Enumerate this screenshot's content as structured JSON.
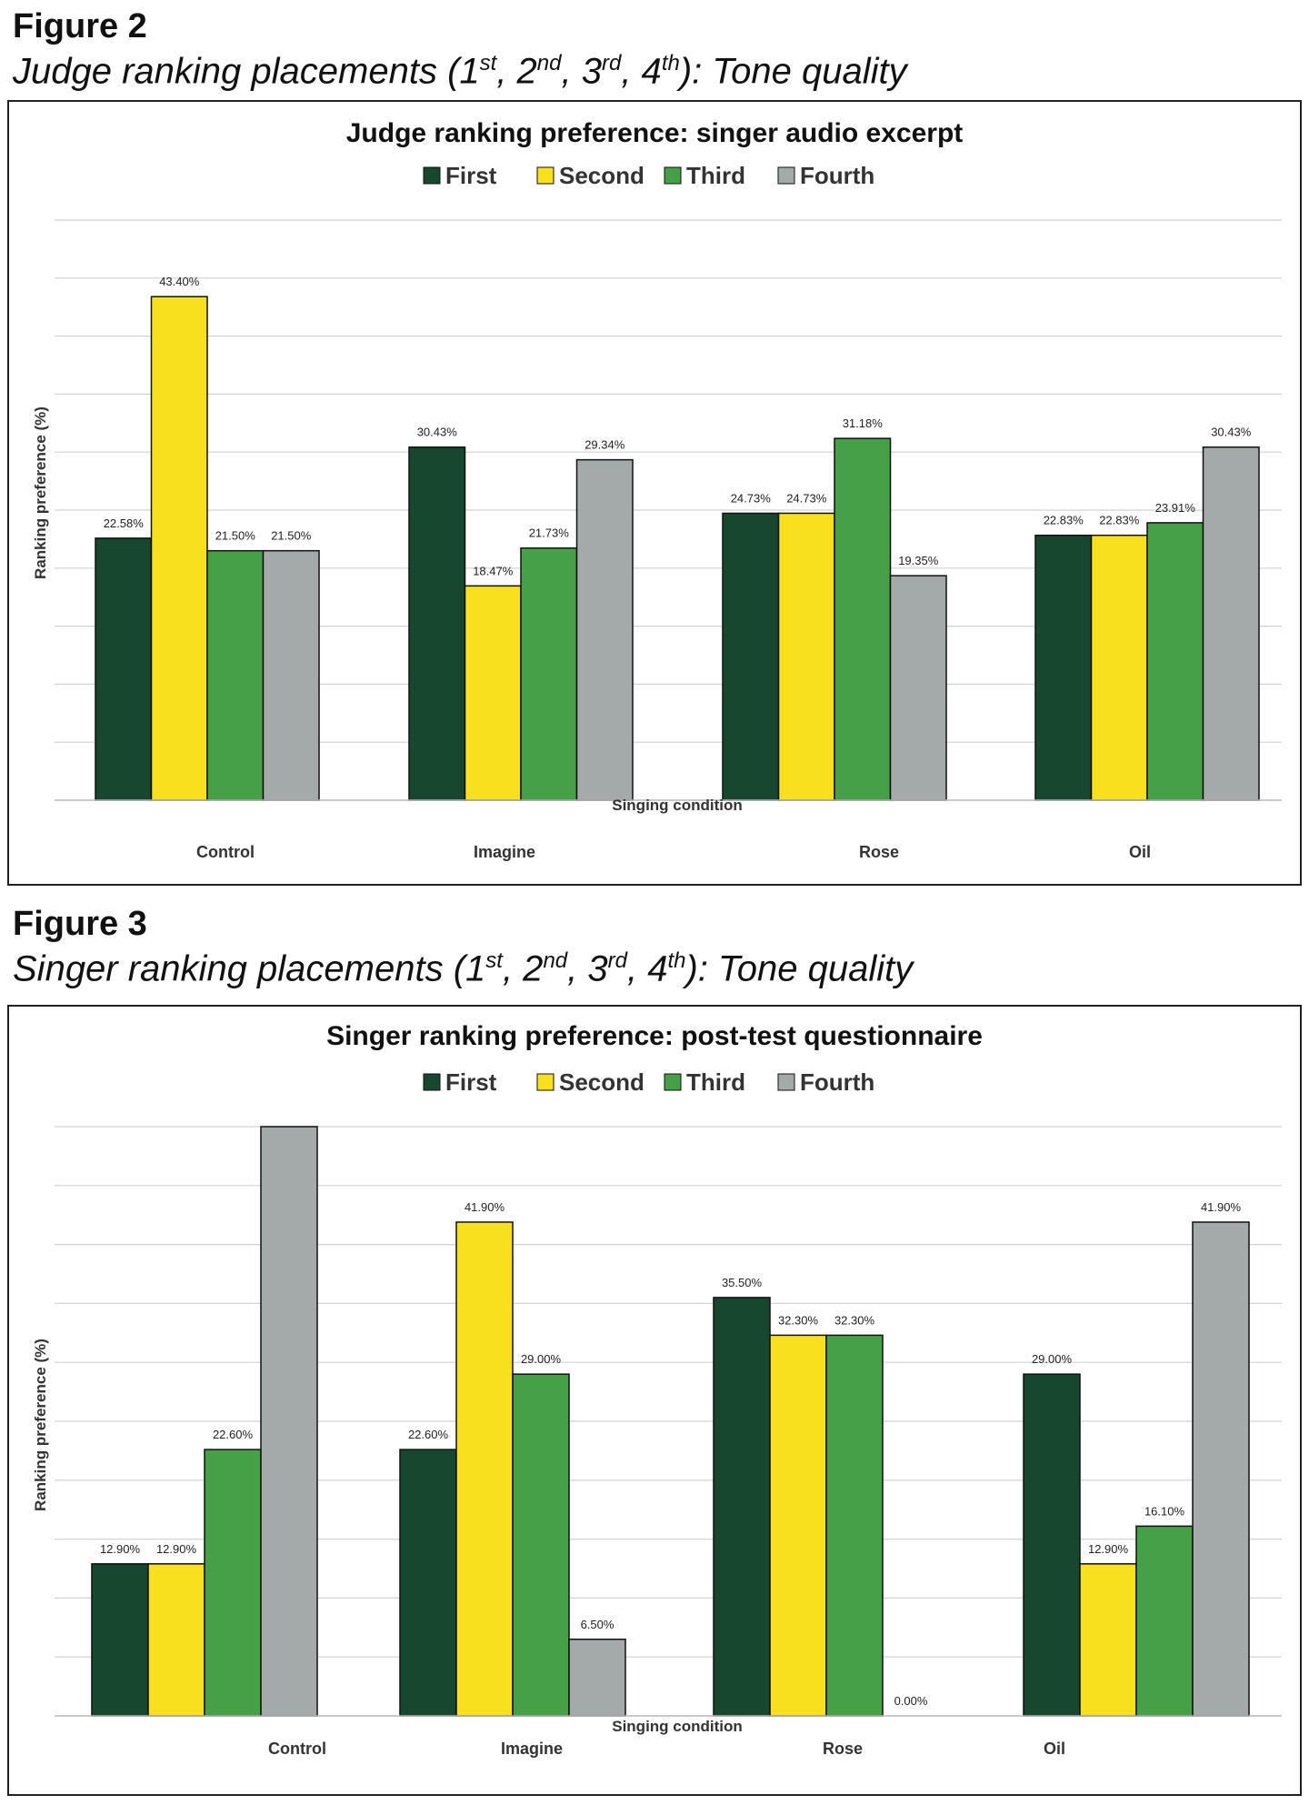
{
  "figure2": {
    "heading": "Figure 2",
    "caption": {
      "prefix": "Judge ranking placements (1",
      "sup1": "st",
      "sep1": ", 2",
      "sup2": "nd",
      "sep2": ", 3",
      "sup3": "rd",
      "sep3": ", 4",
      "sup4": "th",
      "suffix": "): Tone quality"
    }
  },
  "figure3": {
    "heading": "Figure 3",
    "caption": {
      "prefix": "Singer ranking placements (1",
      "sup1": "st",
      "sep1": ", 2",
      "sup2": "nd",
      "sep2": ", 3",
      "sup3": "rd",
      "sep3": ", 4",
      "sup4": "th",
      "suffix": "): Tone quality"
    }
  },
  "chart_data": [
    {
      "type": "bar",
      "title": "Judge ranking preference: singer audio excerpt",
      "xlabel": "Singing condition",
      "ylabel": "Ranking preference (%)",
      "categories": [
        "Control",
        "Imagine",
        "Rose",
        "Oil"
      ],
      "series": [
        {
          "name": "First",
          "color": "#17472F",
          "values": [
            22.58,
            30.43,
            24.73,
            22.83
          ],
          "labels": [
            "22.58%",
            "30.43%",
            "24.73%",
            "22.83%"
          ]
        },
        {
          "name": "Second",
          "color": "#F9E01F",
          "values": [
            43.4,
            18.47,
            24.73,
            22.83
          ],
          "labels": [
            "43.40%",
            "18.47%",
            "24.73%",
            "22.83%"
          ]
        },
        {
          "name": "Third",
          "color": "#46A047",
          "values": [
            21.5,
            21.73,
            31.18,
            23.91
          ],
          "labels": [
            "21.50%",
            "21.73%",
            "31.18%",
            "23.91%"
          ]
        },
        {
          "name": "Fourth",
          "color": "#A4A9AA",
          "values": [
            21.5,
            29.34,
            19.35,
            30.43
          ],
          "labels": [
            "21.50%",
            "29.34%",
            "19.35%",
            "30.43%"
          ]
        }
      ],
      "ylim": [
        0,
        50
      ],
      "grid": true,
      "legend": "top"
    },
    {
      "type": "bar",
      "title": "Singer ranking preference: post-test questionnaire",
      "xlabel": "Singing condition",
      "ylabel": "Ranking preference (%)",
      "categories": [
        "Control",
        "Imagine",
        "Rose",
        "Oil"
      ],
      "series": [
        {
          "name": "First",
          "color": "#17472F",
          "values": [
            12.9,
            22.6,
            35.5,
            29.0
          ],
          "labels": [
            "12.90%",
            "22.60%",
            "35.50%",
            "29.00%"
          ]
        },
        {
          "name": "Second",
          "color": "#F9E01F",
          "values": [
            12.9,
            41.9,
            32.3,
            12.9
          ],
          "labels": [
            "12.90%",
            "41.90%",
            "32.30%",
            "12.90%"
          ]
        },
        {
          "name": "Third",
          "color": "#46A047",
          "values": [
            22.6,
            29.0,
            32.3,
            16.1
          ],
          "labels": [
            "22.60%",
            "29.00%",
            "32.30%",
            "16.10%"
          ]
        },
        {
          "name": "Fourth",
          "color": "#A4A9AA",
          "values": [
            51.6,
            6.5,
            0.0,
            41.9
          ],
          "labels": [
            "",
            "6.50%",
            "0.00%",
            "41.90%"
          ]
        }
      ],
      "ylim": [
        0,
        50
      ],
      "grid": true,
      "legend": "top"
    }
  ]
}
